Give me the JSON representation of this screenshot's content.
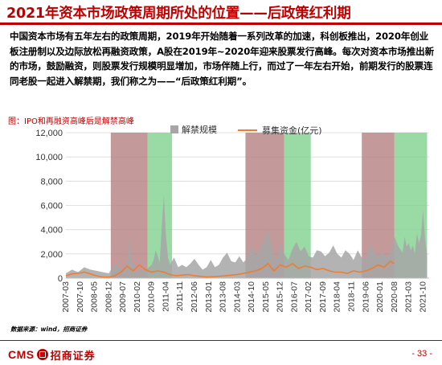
{
  "title": "2021年资本市场政策周期所处的位置——后政策红利期",
  "paragraph": "中国资本市场有五年左右的政策周期，2019年开始随着一系列改革的加速，科创板推出，2020年创业板注册制以及边际放松再融资政策，A股在2019年~2020年迎来股票发行高峰。每次对资本市场推出新的市场，鼓励融资，则股票发行规模明显增加，市场伴随上行，而过了一年左右开始，前期发行的股票连同老股一起进入解禁期，我们称之为——“后政策红利期”。",
  "chart_caption": "图：IPO和再融资高峰后是解禁高峰",
  "source": "数据来源：wind，招商证券",
  "logo": {
    "latin": "CMS",
    "chinese": "招商证券"
  },
  "page_number": "- 33 -",
  "colors": {
    "accent": "#c00000",
    "unlock_area": "#a6a6a6",
    "fundraising_line": "#ed7d31",
    "policy_red_zone": "#b47c7c",
    "policy_green_zone": "#7fd18f"
  },
  "chart_data": {
    "type": "area",
    "title": "",
    "xlabel": "",
    "ylabel": "",
    "ylim": [
      0,
      12000
    ],
    "yticks": [
      0,
      2000,
      4000,
      6000,
      8000,
      10000,
      12000
    ],
    "ytick_labels": [
      "0",
      "2,000",
      "4,000",
      "6,000",
      "8,000",
      "10,000",
      "12,000"
    ],
    "x_tick_labels": [
      "2007-03",
      "2007-10",
      "2008-05",
      "2008-12",
      "2009-07",
      "2010-02",
      "2010-09",
      "2011-04",
      "2011-11",
      "2012-06",
      "2013-01",
      "2013-08",
      "2014-03",
      "2014-10",
      "2015-05",
      "2015-12",
      "2016-07",
      "2017-02",
      "2017-09",
      "2018-04",
      "2018-11",
      "2019-06",
      "2020-01",
      "2020-08",
      "2021-03",
      "2021-10"
    ],
    "legend_placement": "top",
    "grid": "horizontal",
    "series": [
      {
        "name": "解禁规模",
        "kind": "area",
        "points": [
          [
            "2007-03",
            400
          ],
          [
            "2007-06",
            700
          ],
          [
            "2007-09",
            500
          ],
          [
            "2007-12",
            900
          ],
          [
            "2008-03",
            700
          ],
          [
            "2008-06",
            600
          ],
          [
            "2008-09",
            500
          ],
          [
            "2008-12",
            400
          ],
          [
            "2009-02",
            900
          ],
          [
            "2009-04",
            1100
          ],
          [
            "2009-06",
            700
          ],
          [
            "2009-08",
            600
          ],
          [
            "2009-09",
            1300
          ],
          [
            "2009-10",
            3200
          ],
          [
            "2009-11",
            1600
          ],
          [
            "2010-01",
            500
          ],
          [
            "2010-03",
            600
          ],
          [
            "2010-05",
            700
          ],
          [
            "2010-07",
            800
          ],
          [
            "2010-09",
            1100
          ],
          [
            "2010-10",
            1500
          ],
          [
            "2010-11",
            2300
          ],
          [
            "2010-12",
            1800
          ],
          [
            "2011-01",
            1300
          ],
          [
            "2011-02",
            4300
          ],
          [
            "2011-03",
            6800
          ],
          [
            "2011-04",
            3600
          ],
          [
            "2011-05",
            1700
          ],
          [
            "2011-06",
            1100
          ],
          [
            "2011-08",
            1700
          ],
          [
            "2011-10",
            900
          ],
          [
            "2011-12",
            1100
          ],
          [
            "2012-02",
            900
          ],
          [
            "2012-04",
            1200
          ],
          [
            "2012-06",
            1600
          ],
          [
            "2012-08",
            1100
          ],
          [
            "2012-10",
            700
          ],
          [
            "2012-12",
            900
          ],
          [
            "2013-02",
            1500
          ],
          [
            "2013-04",
            900
          ],
          [
            "2013-06",
            1100
          ],
          [
            "2013-08",
            1700
          ],
          [
            "2013-10",
            2100
          ],
          [
            "2013-12",
            1400
          ],
          [
            "2014-02",
            1300
          ],
          [
            "2014-04",
            1800
          ],
          [
            "2014-06",
            1300
          ],
          [
            "2014-08",
            1700
          ],
          [
            "2014-10",
            2700
          ],
          [
            "2014-12",
            1800
          ],
          [
            "2015-02",
            2400
          ],
          [
            "2015-04",
            3000
          ],
          [
            "2015-06",
            4000
          ],
          [
            "2015-08",
            2500
          ],
          [
            "2015-10",
            1400
          ],
          [
            "2015-12",
            2800
          ],
          [
            "2016-02",
            2000
          ],
          [
            "2016-04",
            1500
          ],
          [
            "2016-06",
            2400
          ],
          [
            "2016-08",
            3000
          ],
          [
            "2016-10",
            2200
          ],
          [
            "2016-12",
            2600
          ],
          [
            "2017-02",
            1800
          ],
          [
            "2017-04",
            1700
          ],
          [
            "2017-06",
            2300
          ],
          [
            "2017-08",
            2200
          ],
          [
            "2017-10",
            1800
          ],
          [
            "2017-12",
            2100
          ],
          [
            "2018-02",
            2700
          ],
          [
            "2018-04",
            2000
          ],
          [
            "2018-06",
            1700
          ],
          [
            "2018-08",
            2300
          ],
          [
            "2018-10",
            2000
          ],
          [
            "2018-12",
            1500
          ],
          [
            "2019-02",
            2300
          ],
          [
            "2019-04",
            1700
          ],
          [
            "2019-06",
            1600
          ],
          [
            "2019-08",
            2800
          ],
          [
            "2019-10",
            2200
          ],
          [
            "2019-12",
            1900
          ],
          [
            "2020-02",
            2100
          ],
          [
            "2020-04",
            1800
          ],
          [
            "2020-06",
            2000
          ],
          [
            "2020-08",
            3400
          ],
          [
            "2020-10",
            2600
          ],
          [
            "2020-12",
            2100
          ],
          [
            "2021-01",
            3400
          ],
          [
            "2021-02",
            2600
          ],
          [
            "2021-03",
            2900
          ],
          [
            "2021-04",
            2300
          ],
          [
            "2021-05",
            2700
          ],
          [
            "2021-06",
            2000
          ],
          [
            "2021-07",
            3700
          ],
          [
            "2021-08",
            2900
          ],
          [
            "2021-09",
            3500
          ],
          [
            "2021-10",
            5600
          ],
          [
            "2021-11",
            3200
          ],
          [
            "2021-12",
            1900
          ]
        ]
      },
      {
        "name": "募集资金(亿元)",
        "kind": "line",
        "points": [
          [
            "2007-03",
            200
          ],
          [
            "2007-06",
            350
          ],
          [
            "2007-09",
            400
          ],
          [
            "2007-12",
            500
          ],
          [
            "2008-03",
            350
          ],
          [
            "2008-06",
            200
          ],
          [
            "2008-09",
            100
          ],
          [
            "2008-12",
            80
          ],
          [
            "2009-03",
            200
          ],
          [
            "2009-06",
            500
          ],
          [
            "2009-09",
            1000
          ],
          [
            "2009-12",
            600
          ],
          [
            "2010-03",
            1100
          ],
          [
            "2010-06",
            700
          ],
          [
            "2010-09",
            500
          ],
          [
            "2010-12",
            600
          ],
          [
            "2011-03",
            500
          ],
          [
            "2011-06",
            300
          ],
          [
            "2011-09",
            200
          ],
          [
            "2011-12",
            250
          ],
          [
            "2012-03",
            300
          ],
          [
            "2012-06",
            200
          ],
          [
            "2012-09",
            150
          ],
          [
            "2012-12",
            100
          ],
          [
            "2013-03",
            120
          ],
          [
            "2013-06",
            150
          ],
          [
            "2013-09",
            200
          ],
          [
            "2013-12",
            250
          ],
          [
            "2014-03",
            300
          ],
          [
            "2014-06",
            400
          ],
          [
            "2014-09",
            500
          ],
          [
            "2014-12",
            600
          ],
          [
            "2015-03",
            800
          ],
          [
            "2015-06",
            1200
          ],
          [
            "2015-09",
            600
          ],
          [
            "2015-12",
            1100
          ],
          [
            "2016-03",
            900
          ],
          [
            "2016-06",
            1200
          ],
          [
            "2016-09",
            800
          ],
          [
            "2016-12",
            1000
          ],
          [
            "2017-03",
            900
          ],
          [
            "2017-06",
            700
          ],
          [
            "2017-09",
            800
          ],
          [
            "2017-12",
            600
          ],
          [
            "2018-03",
            500
          ],
          [
            "2018-06",
            500
          ],
          [
            "2018-09",
            400
          ],
          [
            "2018-12",
            600
          ],
          [
            "2019-03",
            500
          ],
          [
            "2019-06",
            600
          ],
          [
            "2019-09",
            800
          ],
          [
            "2019-12",
            1100
          ],
          [
            "2020-03",
            900
          ],
          [
            "2020-06",
            1400
          ],
          [
            "2020-08",
            1200
          ]
        ]
      }
    ],
    "shaded_periods": [
      {
        "label": "",
        "start": "2009-01",
        "end": "2010-07",
        "color": "red"
      },
      {
        "label": "",
        "start": "2010-07",
        "end": "2011-07",
        "color": "green"
      },
      {
        "label": "",
        "start": "2014-07",
        "end": "2016-02",
        "color": "red"
      },
      {
        "label": "",
        "start": "2016-02",
        "end": "2017-03",
        "color": "green"
      },
      {
        "label": "",
        "start": "2019-04",
        "end": "2020-08",
        "color": "red"
      },
      {
        "label": "",
        "start": "2020-08",
        "end": "2021-12",
        "color": "green"
      }
    ]
  }
}
